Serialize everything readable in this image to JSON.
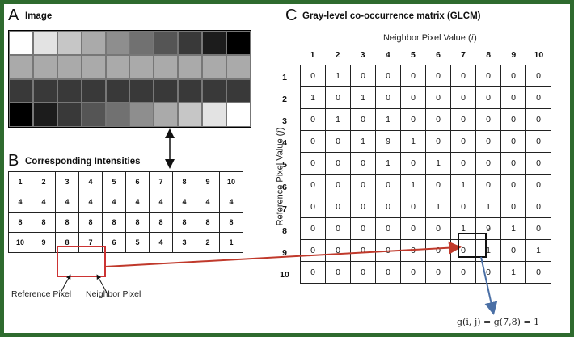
{
  "panel_a": {
    "letter": "A",
    "title": "Image"
  },
  "panel_b": {
    "letter": "B",
    "title": "Corresponding Intensities"
  },
  "panel_c": {
    "letter": "C",
    "title": "Gray-level co-occurrence matrix (GLCM)"
  },
  "axis": {
    "neighbor_label": "Neighbor Pixel Value (i)",
    "reference_label": "Reference Pixel Value (j)"
  },
  "image_gray_levels": [
    [
      1,
      2,
      3,
      4,
      5,
      6,
      7,
      8,
      9,
      10
    ],
    [
      4,
      4,
      4,
      4,
      4,
      4,
      4,
      4,
      4,
      4
    ],
    [
      8,
      8,
      8,
      8,
      8,
      8,
      8,
      8,
      8,
      8
    ],
    [
      10,
      9,
      8,
      7,
      6,
      5,
      4,
      3,
      2,
      1
    ]
  ],
  "intensities": [
    [
      "1",
      "2",
      "3",
      "4",
      "5",
      "6",
      "7",
      "8",
      "9",
      "10"
    ],
    [
      "4",
      "4",
      "4",
      "4",
      "4",
      "4",
      "4",
      "4",
      "4",
      "4"
    ],
    [
      "8",
      "8",
      "8",
      "8",
      "8",
      "8",
      "8",
      "8",
      "8",
      "8"
    ],
    [
      "10",
      "9",
      "8",
      "7",
      "6",
      "5",
      "4",
      "3",
      "2",
      "1"
    ]
  ],
  "glcm": {
    "col_headers": [
      "1",
      "2",
      "3",
      "4",
      "5",
      "6",
      "7",
      "8",
      "9",
      "10"
    ],
    "row_headers": [
      "1",
      "2",
      "3",
      "4",
      "5",
      "6",
      "7",
      "8",
      "9",
      "10"
    ],
    "rows": [
      [
        "0",
        "1",
        "0",
        "0",
        "0",
        "0",
        "0",
        "0",
        "0",
        "0"
      ],
      [
        "1",
        "0",
        "1",
        "0",
        "0",
        "0",
        "0",
        "0",
        "0",
        "0"
      ],
      [
        "0",
        "1",
        "0",
        "1",
        "0",
        "0",
        "0",
        "0",
        "0",
        "0"
      ],
      [
        "0",
        "0",
        "1",
        "9",
        "1",
        "0",
        "0",
        "0",
        "0",
        "0"
      ],
      [
        "0",
        "0",
        "0",
        "1",
        "0",
        "1",
        "0",
        "0",
        "0",
        "0"
      ],
      [
        "0",
        "0",
        "0",
        "0",
        "1",
        "0",
        "1",
        "0",
        "0",
        "0"
      ],
      [
        "0",
        "0",
        "0",
        "0",
        "0",
        "1",
        "0",
        "1",
        "0",
        "0"
      ],
      [
        "0",
        "0",
        "0",
        "0",
        "0",
        "0",
        "1",
        "9",
        "1",
        "0"
      ],
      [
        "0",
        "0",
        "0",
        "0",
        "0",
        "0",
        "0",
        "1",
        "0",
        "1"
      ],
      [
        "0",
        "0",
        "0",
        "0",
        "0",
        "0",
        "0",
        "0",
        "1",
        "0"
      ]
    ],
    "highlight": {
      "row": 8,
      "col": 7
    }
  },
  "labels": {
    "reference_pixel": "Reference Pixel",
    "neighbor_pixel": "Neighbor Pixel",
    "formula": "g(i, j) = g(7,8) = 1"
  },
  "colors": {
    "frame": "#2e6b2e",
    "highlight_box": "#cc3333",
    "red_arrow": "#c0392b",
    "blue_arrow": "#4a6fa5"
  }
}
